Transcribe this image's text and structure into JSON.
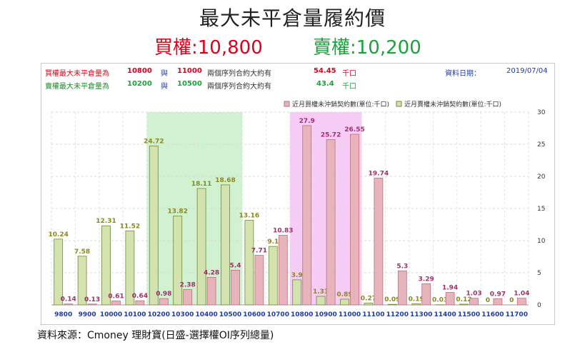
{
  "header": {
    "title": "最大未平倉量履約價",
    "call_label": "買權:10,800",
    "put_label": "賣權:10,200"
  },
  "info": {
    "call_row": {
      "label": "買權最大未平倉量為",
      "strike1": "10800",
      "and": "與",
      "strike2": "11000",
      "desc": "兩個序列合約大約有",
      "value": "54.45",
      "unit": "千口"
    },
    "put_row": {
      "label": "賣權最大未平倉量為",
      "strike1": "10200",
      "and": "與",
      "strike2": "10500",
      "desc": "兩個序列合約大約有",
      "value": "43.4",
      "unit": "千口"
    },
    "date_label": "資料日期：",
    "date": "2019/07/04"
  },
  "footer": {
    "source": "資料來源：Cmoney 理財寶(日盛-選擇權OI序列總量)"
  },
  "colors": {
    "call_bar": "#e8b4bc",
    "call_stroke": "#b9707d",
    "call_text": "#a0306a",
    "put_bar": "#d4e2b0",
    "put_stroke": "#6f8a38",
    "put_text": "#8a8a1a",
    "put_highlight": "#c9f0c9",
    "call_highlight": "#f5c2f5",
    "xtick": "#1f3aa8",
    "red": "#e0001b",
    "green": "#1aa33a"
  },
  "chart_data": {
    "type": "bar",
    "categories": [
      "9800",
      "9900",
      "10000",
      "10100",
      "10200",
      "10300",
      "10400",
      "10500",
      "10600",
      "10700",
      "10800",
      "10900",
      "11000",
      "11100",
      "11200",
      "11300",
      "11400",
      "11500",
      "11600",
      "11700"
    ],
    "series": [
      {
        "name": "近月買權未沖銷契約數(單位:千口)",
        "values": [
          0.14,
          0.13,
          0.61,
          0.64,
          0.98,
          2.38,
          4.28,
          5.4,
          7.71,
          10.83,
          27.9,
          25.72,
          26.55,
          19.74,
          5.3,
          3.29,
          1.94,
          1.03,
          0.97,
          1.04
        ]
      },
      {
        "name": "近月賣權未沖銷契約數(單位:千口)",
        "values": [
          10.24,
          7.58,
          12.31,
          11.52,
          24.72,
          13.82,
          18.11,
          18.68,
          13.16,
          9.1,
          3.9,
          1.33,
          0.89,
          0.27,
          0.09,
          0.19,
          0.03,
          0.12,
          0,
          0
        ]
      }
    ],
    "ylim": [
      0,
      30
    ],
    "yticks": [
      0,
      5,
      10,
      15,
      20,
      25,
      30
    ],
    "highlight_ranges": [
      {
        "from": "10200",
        "to": "10500",
        "series": "put"
      },
      {
        "from": "10800",
        "to": "11000",
        "series": "call"
      }
    ],
    "grid": true,
    "legend": "top-right",
    "yaxis_side": "right"
  }
}
